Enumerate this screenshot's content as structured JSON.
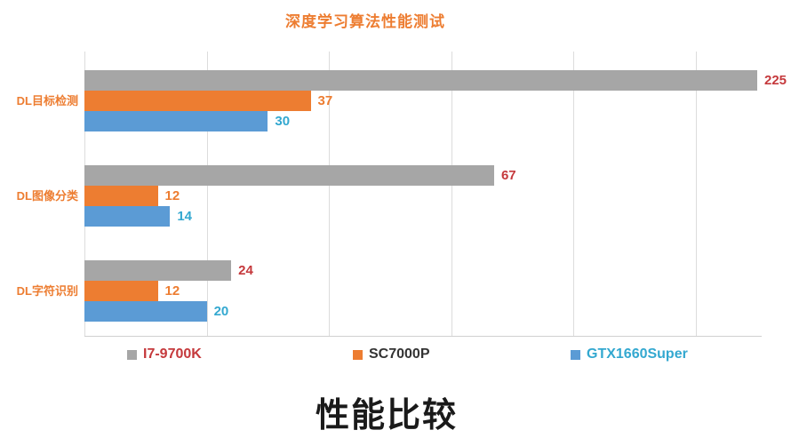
{
  "bottom_title": "性能比较",
  "colors": {
    "background": "#ffffff",
    "title_orange": "#ed7d31",
    "category_label": "#ed7d31",
    "gridline": "#dcdcdc",
    "axis_line": "#d0d0d0",
    "bottom_title": "#1a1a1a"
  },
  "chart_data": {
    "type": "bar",
    "orientation": "horizontal",
    "title": "深度学习算法性能测试",
    "categories": [
      "DL目标检测",
      "DL图像分类",
      "DL字符识别"
    ],
    "series": [
      {
        "name": "I7-9700K",
        "color": "#a6a6a6",
        "value_label_color": "#c5393c",
        "legend_text_color": "#c5393c",
        "values": [
          225,
          67,
          24
        ]
      },
      {
        "name": "SC7000P",
        "color": "#ed7d31",
        "value_label_color": "#ed7d31",
        "legend_text_color": "#333333",
        "values": [
          37,
          12,
          12
        ]
      },
      {
        "name": "GTX1660Super",
        "color": "#5b9bd5",
        "value_label_color": "#33a8d0",
        "legend_text_color": "#33a8d0",
        "values": [
          30,
          14,
          20
        ]
      }
    ],
    "xlabel": "",
    "ylabel": "",
    "xlim": [
      0,
      110.7
    ],
    "gridline_step": 20,
    "grid": true,
    "overflow_clip": true,
    "legend_position": "bottom",
    "value_labels": "outside-end"
  }
}
